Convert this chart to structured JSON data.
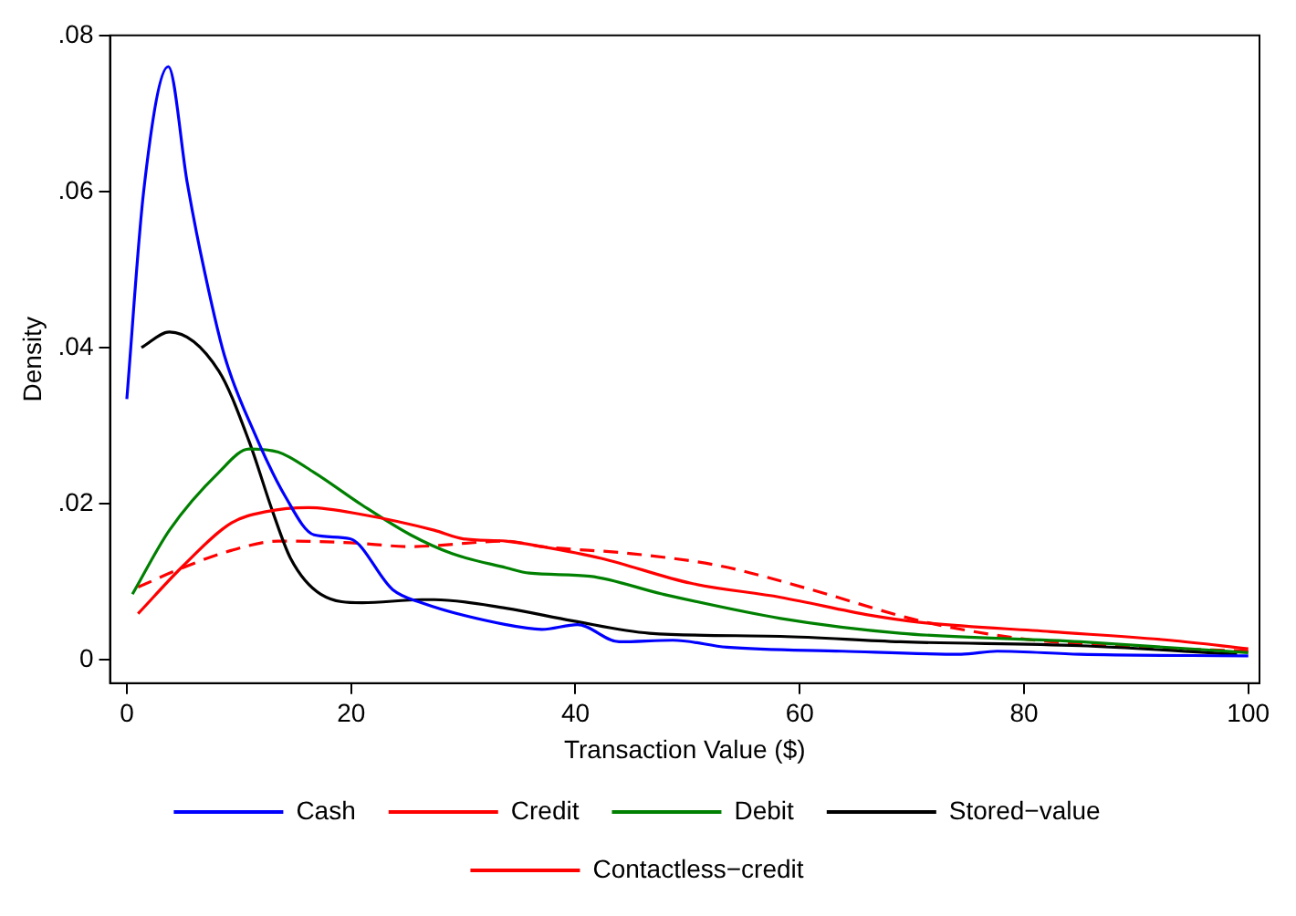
{
  "chart_data": {
    "type": "line",
    "xlabel": "Transaction Value ($)",
    "ylabel": "Density",
    "xlim": [
      -1.5,
      101
    ],
    "xticks": [
      0,
      20,
      40,
      60,
      80,
      100
    ],
    "ylim": [
      -0.003,
      0.08
    ],
    "yticks": [
      {
        "value": 0,
        "label": "0"
      },
      {
        "value": 0.02,
        "label": ".02"
      },
      {
        "value": 0.04,
        "label": ".04"
      },
      {
        "value": 0.06,
        "label": ".06"
      },
      {
        "value": 0.08,
        "label": ".08"
      }
    ],
    "grid": false,
    "legend": "bottom",
    "marker": "none",
    "series": [
      {
        "name": "Cash",
        "color": "#0000ff",
        "line_style": "solid",
        "x": [
          0,
          1.5,
          3.7,
          5.4,
          6.6,
          8.7,
          11.4,
          14.1,
          16.7,
          19.9,
          23.7,
          26.3,
          33.8,
          37,
          40.2,
          43.9,
          48.7,
          53.5,
          63.8,
          74.4,
          77.6,
          85,
          100
        ],
        "values": [
          0.0334,
          0.06,
          0.076,
          0.061,
          0.052,
          0.039,
          0.029,
          0.021,
          0.016,
          0.0155,
          0.009,
          0.0073,
          0.0045,
          0.0039,
          0.0045,
          0.0023,
          0.0025,
          0.0016,
          0.0011,
          0.0007,
          0.0011,
          0.0007,
          0.0005
        ]
      },
      {
        "name": "Credit",
        "color": "#ff0000",
        "line_style": "solid",
        "x": [
          1,
          5,
          9.3,
          12.5,
          16.2,
          21,
          27.4,
          30,
          33.8,
          37,
          42.3,
          50.3,
          58.3,
          66.3,
          70.7,
          82.4,
          93,
          100
        ],
        "values": [
          0.0059,
          0.012,
          0.0175,
          0.019,
          0.0195,
          0.0186,
          0.0166,
          0.0155,
          0.0152,
          0.0145,
          0.013,
          0.0098,
          0.008,
          0.0057,
          0.0048,
          0.0036,
          0.0025,
          0.0014
        ]
      },
      {
        "name": "Debit",
        "color": "#008000",
        "line_style": "solid",
        "x": [
          0.5,
          3.8,
          8.2,
          10.9,
          13.5,
          16.7,
          21,
          25.3,
          29,
          33.8,
          35.9,
          41.3,
          47.8,
          58.3,
          69,
          85,
          100
        ],
        "values": [
          0.0084,
          0.0166,
          0.024,
          0.027,
          0.0266,
          0.024,
          0.0198,
          0.016,
          0.0136,
          0.0118,
          0.0111,
          0.0107,
          0.0084,
          0.0053,
          0.0034,
          0.0023,
          0.0009
        ]
      },
      {
        "name": "Stored−value",
        "color": "#000000",
        "line_style": "solid",
        "x": [
          1.3,
          3.8,
          8.2,
          10.9,
          13,
          14.6,
          17.3,
          21,
          26.3,
          27.4,
          33.8,
          39.7,
          46.6,
          58.3,
          69,
          85,
          99
        ],
        "values": [
          0.04,
          0.042,
          0.037,
          0.028,
          0.019,
          0.013,
          0.0084,
          0.0073,
          0.0077,
          0.0077,
          0.0066,
          0.005,
          0.0034,
          0.003,
          0.0023,
          0.0018,
          0.0007
        ]
      },
      {
        "name": "Contactless−credit",
        "color": "#ff0000",
        "line_style": "dashed",
        "x": [
          1,
          5,
          9.3,
          13.5,
          19.9,
          25.3,
          33.8,
          37,
          45,
          53,
          61,
          70.7,
          79.8,
          90.4,
          100
        ],
        "values": [
          0.0093,
          0.0118,
          0.014,
          0.0152,
          0.015,
          0.0145,
          0.0152,
          0.0145,
          0.0136,
          0.012,
          0.009,
          0.005,
          0.0027,
          0.0016,
          0.0011
        ]
      }
    ]
  }
}
